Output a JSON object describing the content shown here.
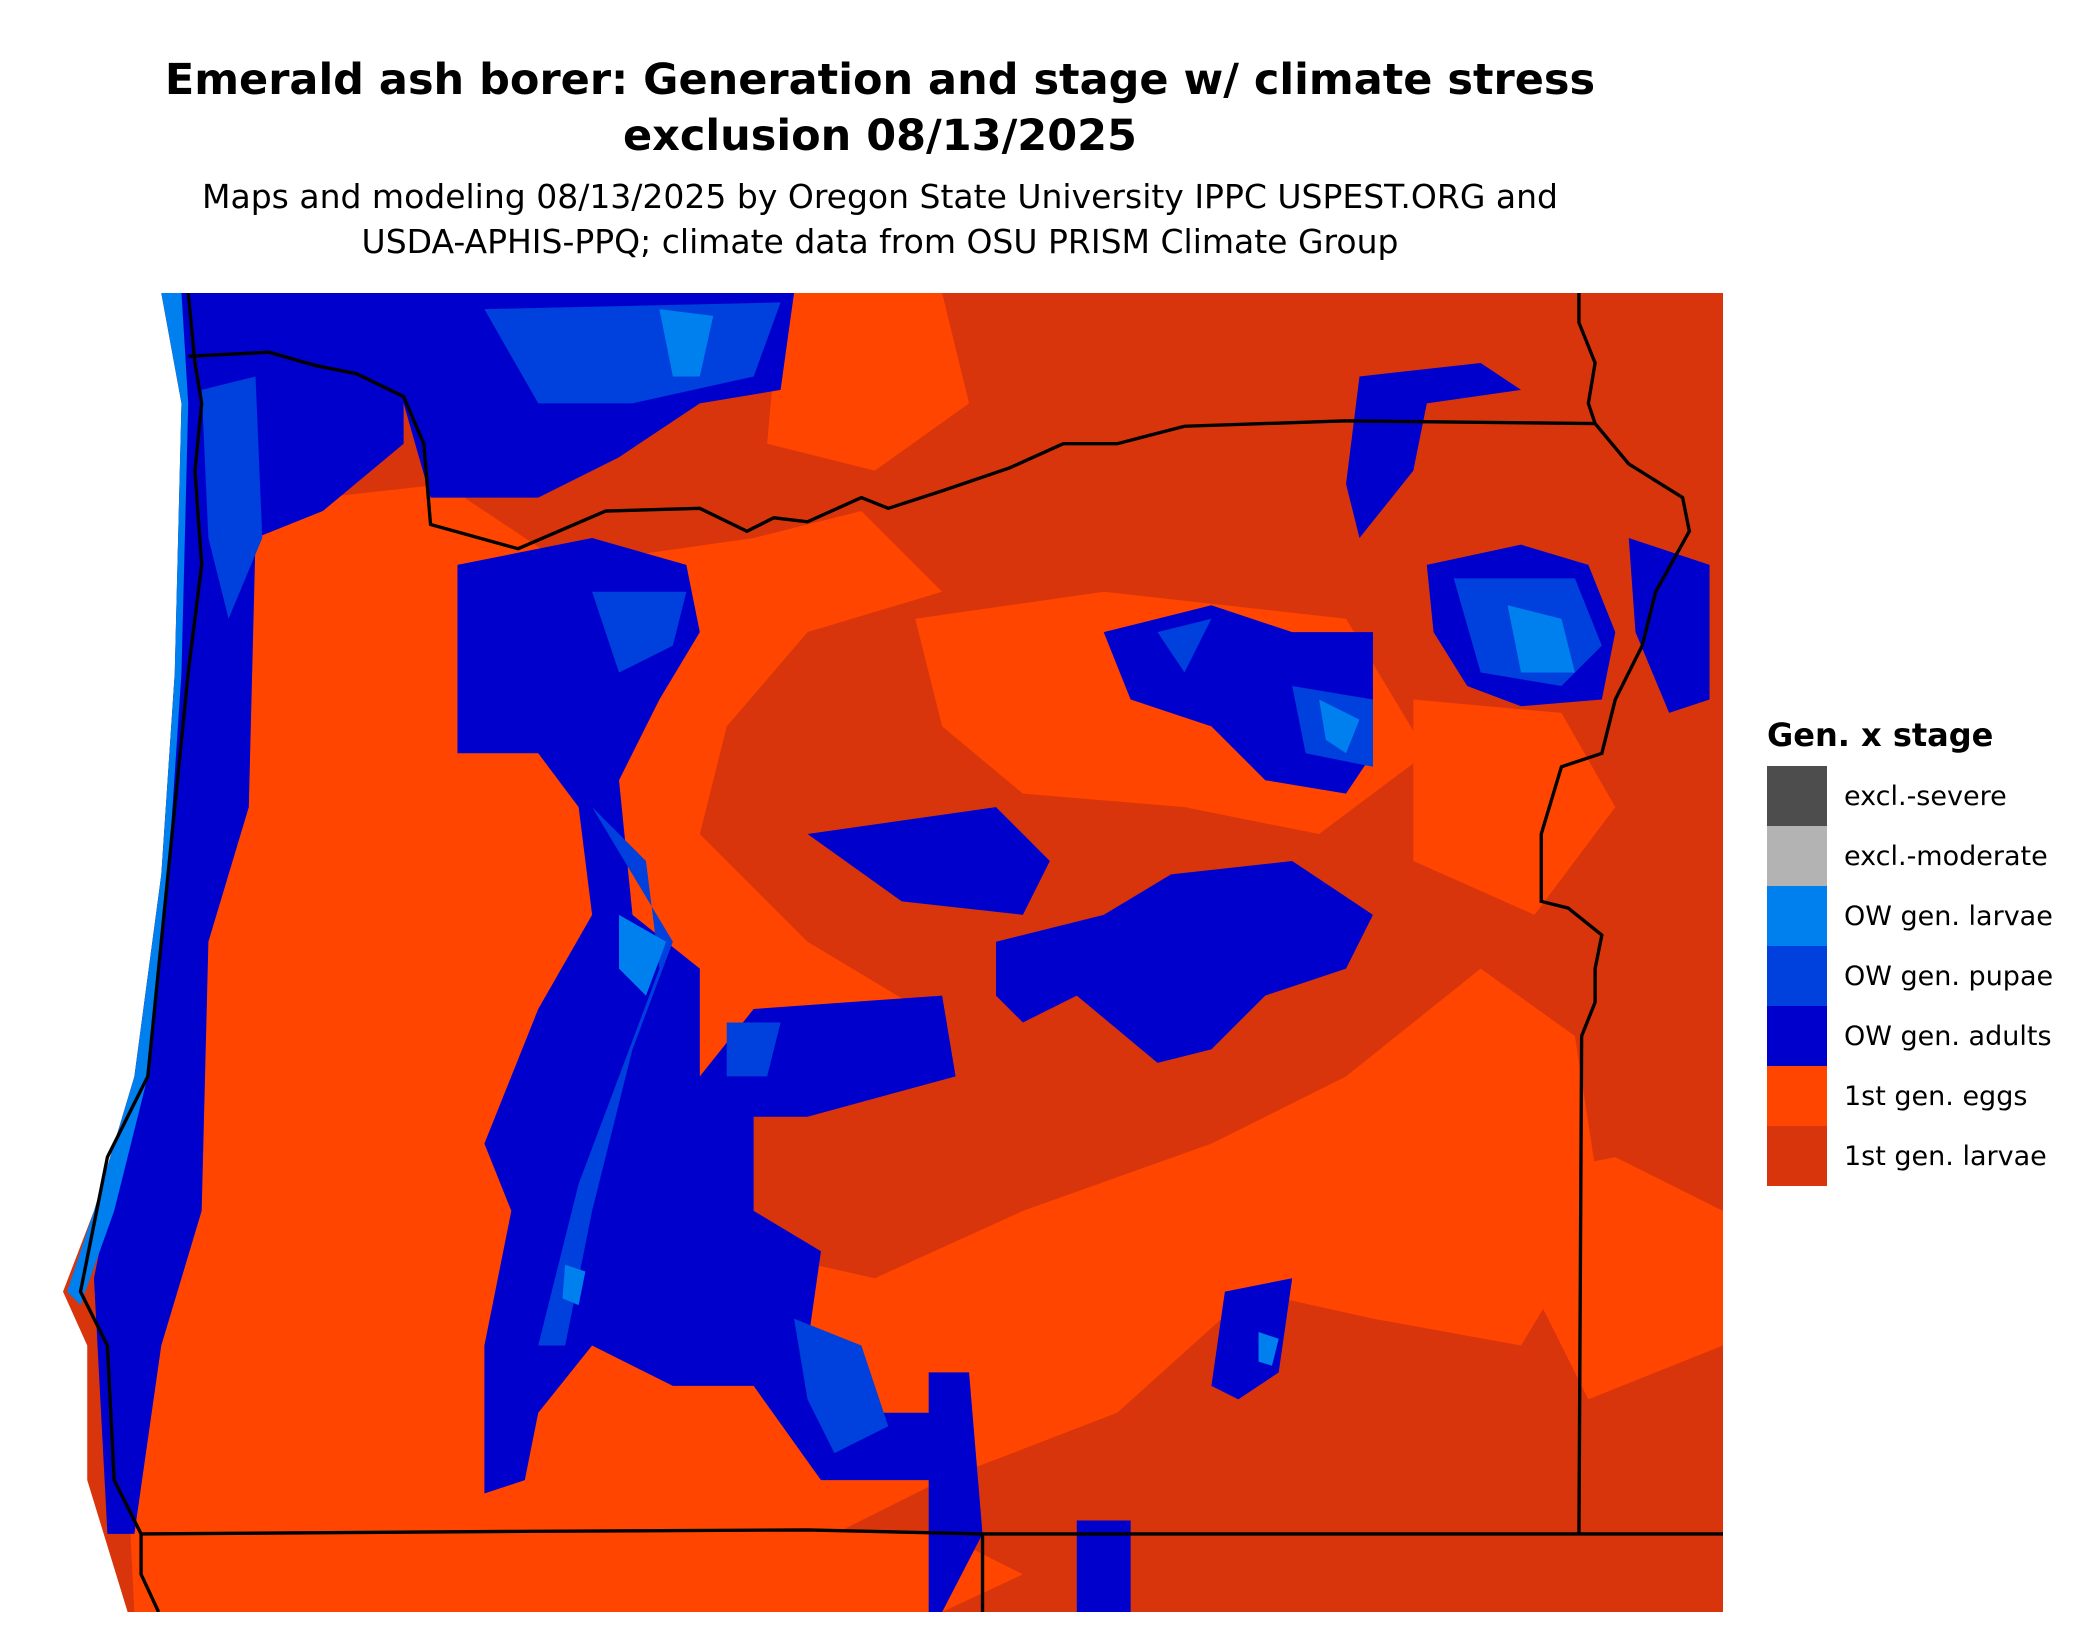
{
  "title": {
    "line1": "Emerald ash borer: Generation and stage w/ climate stress",
    "line2": "exclusion 08/13/2025"
  },
  "subtitle": {
    "line1": "Maps and modeling 08/13/2025 by Oregon State University IPPC USPEST.ORG and",
    "line2": "USDA-APHIS-PPQ; climate data from OSU PRISM Climate Group"
  },
  "legend": {
    "title": "Gen. x stage",
    "items": [
      {
        "label": "excl.-severe",
        "color": "#4d4d4d"
      },
      {
        "label": "excl.-moderate",
        "color": "#b3b3b3"
      },
      {
        "label": "OW gen. larvae",
        "color": "#007fee"
      },
      {
        "label": "OW gen. pupae",
        "color": "#0040dd"
      },
      {
        "label": "OW gen. adults",
        "color": "#0000cd"
      },
      {
        "label": "1st gen. eggs",
        "color": "#ff4500"
      },
      {
        "label": "1st gen. larvae",
        "color": "#d8350d"
      }
    ]
  },
  "map": {
    "region": "Oregon",
    "boundary_color": "#000000"
  }
}
